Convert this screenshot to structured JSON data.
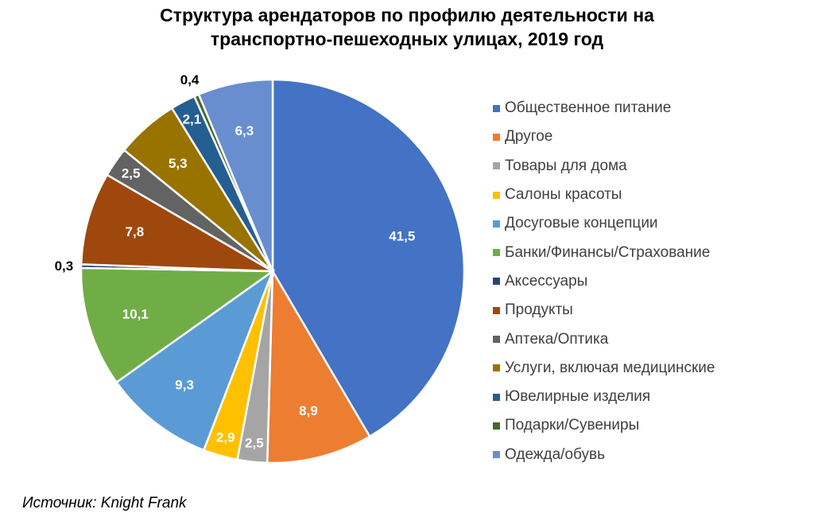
{
  "chart_data": {
    "type": "pie",
    "title": "Структура арендаторов по профилю деятельности на транспортно-пешеходных улицах, 2019 год",
    "categories": [
      "Общественное питание",
      "Другое",
      "Товары для дома",
      "Салоны красоты",
      "Досуговые концепции",
      "Банки/Финансы/Страхование",
      "Аксессуары",
      "Продукты",
      "Аптека/Оптика",
      "Услуги, включая медицинские",
      "Ювелирные изделия",
      "Подарки/Сувениры",
      "Одежда/обувь"
    ],
    "values": [
      41.5,
      8.9,
      2.5,
      2.9,
      9.3,
      10.1,
      0.3,
      7.8,
      2.5,
      5.3,
      2.1,
      0.4,
      6.3
    ],
    "data_labels": [
      "41,5",
      "8,9",
      "2,5",
      "2,9",
      "9,3",
      "10,1",
      "0,3",
      "7,8",
      "2,5",
      "5,3",
      "2,1",
      "0,4",
      "6,3"
    ],
    "colors": [
      "#4472C4",
      "#ED7D31",
      "#A5A5A5",
      "#FFC000",
      "#5B9BD5",
      "#70AD47",
      "#264478",
      "#9E480E",
      "#636363",
      "#997300",
      "#255E91",
      "#43682B",
      "#698ED0"
    ],
    "legend_position": "right",
    "start_angle": "top, clockwise"
  },
  "source": "Источник: Knight Frank"
}
